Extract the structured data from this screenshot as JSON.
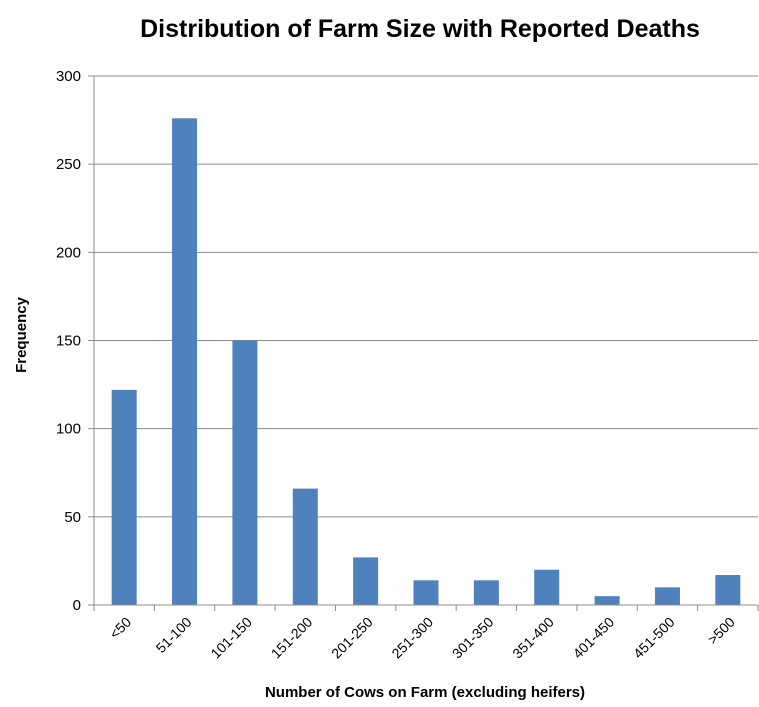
{
  "chart_data": {
    "type": "bar",
    "title": "Distribution of Farm Size with Reported Deaths",
    "xlabel": "Number of Cows on Farm (excluding heifers)",
    "ylabel": "Frequency",
    "categories": [
      "<50",
      "51-100",
      "101-150",
      "151-200",
      "201-250",
      "251-300",
      "301-350",
      "351-400",
      "401-450",
      "451-500",
      ">500"
    ],
    "values": [
      122,
      276,
      150,
      66,
      27,
      14,
      14,
      20,
      5,
      10,
      17
    ],
    "ylim": [
      0,
      300
    ],
    "yticks": [
      0,
      50,
      100,
      150,
      200,
      250,
      300
    ],
    "grid": true,
    "legend": "none",
    "bar_color": "#4f81bd"
  }
}
